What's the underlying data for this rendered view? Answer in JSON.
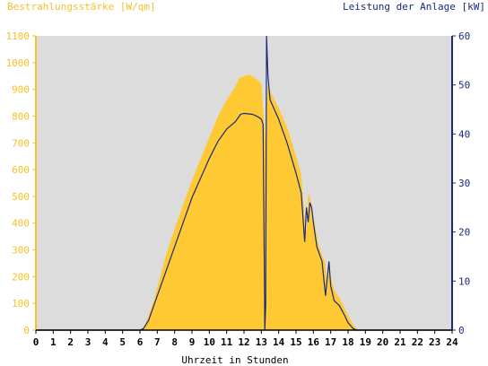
{
  "chart_data": {
    "type": "area",
    "title_left": "Bestrahlungsstärke [W/qm]",
    "title_right": "Leistung der Anlage [kW]",
    "xlabel": "Uhrzeit in Stunden",
    "xlim": [
      0,
      24
    ],
    "x_ticks": [
      "0",
      "1",
      "2",
      "3",
      "4",
      "5",
      "6",
      "7",
      "8",
      "9",
      "10",
      "11",
      "12",
      "13",
      "14",
      "15",
      "16",
      "17",
      "18",
      "19",
      "20",
      "21",
      "22",
      "23",
      "24"
    ],
    "ylim_left": [
      0,
      1100
    ],
    "y_ticks_left": [
      "0",
      "100",
      "200",
      "300",
      "400",
      "500",
      "600",
      "700",
      "800",
      "900",
      "1000",
      "1100"
    ],
    "ylim_right": [
      0,
      60
    ],
    "y_ticks_right": [
      "0",
      "10",
      "20",
      "30",
      "40",
      "50",
      "60"
    ],
    "grid": false,
    "colors": {
      "irradiance": "#ffc933",
      "power": "#1a2a78",
      "plot_bg": "#dcdcdc",
      "left_axis": "#f5c02a",
      "right_axis": "#1a2a78"
    },
    "series": [
      {
        "axis": "left",
        "style": "area",
        "points": [
          [
            0,
            0
          ],
          [
            6.1,
            0
          ],
          [
            6.3,
            20
          ],
          [
            6.5,
            55
          ],
          [
            6.8,
            110
          ],
          [
            7.0,
            160
          ],
          [
            7.3,
            230
          ],
          [
            7.5,
            280
          ],
          [
            8.0,
            380
          ],
          [
            8.5,
            470
          ],
          [
            9.0,
            560
          ],
          [
            9.5,
            640
          ],
          [
            10.0,
            720
          ],
          [
            10.5,
            800
          ],
          [
            11.0,
            860
          ],
          [
            11.5,
            910
          ],
          [
            11.7,
            940
          ],
          [
            12.0,
            950
          ],
          [
            12.3,
            955
          ],
          [
            12.5,
            948
          ],
          [
            12.8,
            935
          ],
          [
            13.0,
            920
          ],
          [
            13.25,
            700
          ],
          [
            13.35,
            920
          ],
          [
            13.5,
            895
          ],
          [
            14.0,
            830
          ],
          [
            14.5,
            755
          ],
          [
            15.0,
            650
          ],
          [
            15.3,
            580
          ],
          [
            15.5,
            420
          ],
          [
            15.6,
            360
          ],
          [
            15.7,
            510
          ],
          [
            15.8,
            500
          ],
          [
            16.0,
            420
          ],
          [
            16.3,
            320
          ],
          [
            16.5,
            280
          ],
          [
            16.7,
            250
          ],
          [
            16.8,
            150
          ],
          [
            16.9,
            260
          ],
          [
            17.0,
            200
          ],
          [
            17.2,
            150
          ],
          [
            17.4,
            130
          ],
          [
            17.6,
            110
          ],
          [
            17.8,
            80
          ],
          [
            18.0,
            55
          ],
          [
            18.3,
            20
          ],
          [
            18.5,
            5
          ],
          [
            18.7,
            0
          ],
          [
            24,
            0
          ]
        ]
      },
      {
        "axis": "right",
        "style": "line",
        "points": [
          [
            0,
            0
          ],
          [
            6.0,
            0
          ],
          [
            6.2,
            0.3
          ],
          [
            6.5,
            2
          ],
          [
            7.0,
            7
          ],
          [
            7.5,
            12
          ],
          [
            8.0,
            17
          ],
          [
            8.5,
            22
          ],
          [
            9.0,
            27
          ],
          [
            9.5,
            31
          ],
          [
            10.0,
            35
          ],
          [
            10.5,
            38.5
          ],
          [
            11.0,
            41
          ],
          [
            11.5,
            42.5
          ],
          [
            11.8,
            44
          ],
          [
            12.0,
            44.2
          ],
          [
            12.5,
            44
          ],
          [
            12.8,
            43.5
          ],
          [
            13.0,
            43
          ],
          [
            13.1,
            42
          ],
          [
            13.15,
            22
          ],
          [
            13.2,
            0
          ],
          [
            13.25,
            5
          ],
          [
            13.3,
            60
          ],
          [
            13.38,
            52
          ],
          [
            13.5,
            47
          ],
          [
            14.0,
            43
          ],
          [
            14.5,
            38
          ],
          [
            15.0,
            32
          ],
          [
            15.3,
            28
          ],
          [
            15.5,
            18
          ],
          [
            15.6,
            25
          ],
          [
            15.7,
            22
          ],
          [
            15.8,
            26
          ],
          [
            15.9,
            25
          ],
          [
            16.0,
            22
          ],
          [
            16.2,
            17
          ],
          [
            16.5,
            14
          ],
          [
            16.7,
            7
          ],
          [
            16.9,
            14
          ],
          [
            17.0,
            9
          ],
          [
            17.2,
            6
          ],
          [
            17.5,
            5
          ],
          [
            17.8,
            3
          ],
          [
            18.0,
            1.5
          ],
          [
            18.3,
            0.3
          ],
          [
            18.5,
            0
          ],
          [
            24,
            0
          ]
        ]
      }
    ]
  }
}
